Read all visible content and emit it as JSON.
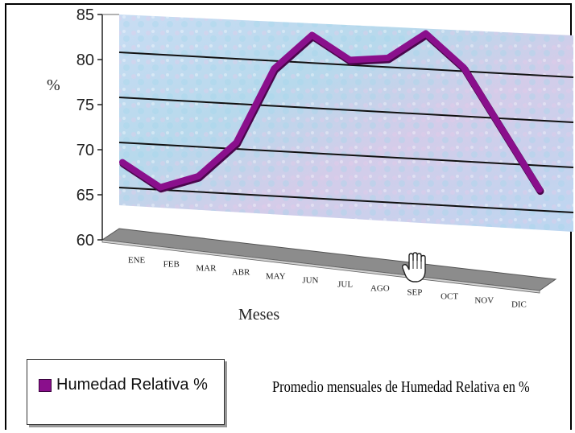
{
  "chart_data": {
    "type": "line",
    "title": "Promedio mensuales de Humedad Relativa en %",
    "xlabel": "Meses",
    "ylabel": "%",
    "ylim": [
      60,
      85
    ],
    "yticks": [
      "60",
      "65",
      "70",
      "75",
      "80",
      "85"
    ],
    "categories": [
      "ENE",
      "FEB",
      "MAR",
      "ABR",
      "MAY",
      "JUN",
      "JUL",
      "AGO",
      "SEP",
      "OCT",
      "NOV",
      "DIC"
    ],
    "series": [
      {
        "name": "Humedad Relativa %",
        "values": [
          67,
          64.5,
          66,
          70,
          78.5,
          82.5,
          80,
          80.5,
          83.5,
          80,
          73.5,
          67
        ],
        "color": "#8a0f8c"
      }
    ],
    "grid": true,
    "legend": "bottom-left",
    "wall_color": "#b8d6f0",
    "floor_color": "#8c8c8c"
  }
}
